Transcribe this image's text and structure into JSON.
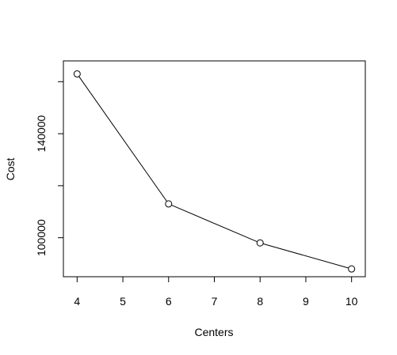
{
  "chart_data": {
    "type": "line",
    "title": "",
    "xlabel": "Centers",
    "ylabel": "Cost",
    "x": [
      4,
      6,
      8,
      10
    ],
    "series": [
      {
        "values": [
          163000,
          113000,
          98000,
          88000
        ]
      }
    ],
    "xlim": [
      3.7,
      10.3
    ],
    "ylim": [
      85000,
      168000
    ],
    "x_ticks": [
      4,
      5,
      6,
      7,
      8,
      9,
      10
    ],
    "x_tick_labels": [
      "4",
      "5",
      "6",
      "7",
      "8",
      "9",
      "10"
    ],
    "y_ticks": [
      100000,
      120000,
      140000,
      160000
    ],
    "y_tick_labels": [
      "100000",
      "",
      "140000",
      ""
    ],
    "marker": "open-circle",
    "line_color": "#000000",
    "grid": false,
    "legend": "none"
  }
}
